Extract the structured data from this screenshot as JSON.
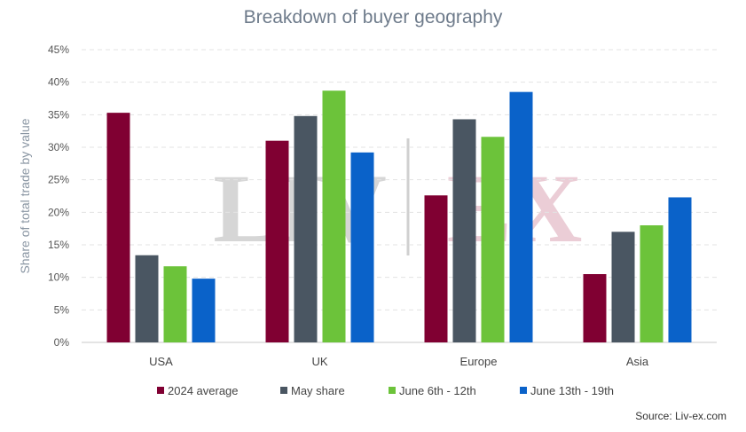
{
  "chart_data": {
    "type": "bar",
    "title": "Breakdown of buyer geography",
    "xlabel": "",
    "ylabel": "Share of total trade by value",
    "categories": [
      "USA",
      "UK",
      "Europe",
      "Asia"
    ],
    "ylim": [
      0,
      45
    ],
    "yticks": [
      "0%",
      "5%",
      "10%",
      "15%",
      "20%",
      "25%",
      "30%",
      "35%",
      "40%",
      "45%"
    ],
    "grid": true,
    "legend_position": "bottom",
    "series": [
      {
        "name": "2024 average",
        "color": "#800032",
        "values": [
          35.3,
          31.0,
          22.6,
          10.5
        ]
      },
      {
        "name": "May share",
        "color": "#4a5662",
        "values": [
          13.4,
          34.8,
          34.3,
          17.0
        ]
      },
      {
        "name": "June 6th - 12th",
        "color": "#6cc33a",
        "values": [
          11.7,
          38.7,
          31.6,
          18.0
        ]
      },
      {
        "name": "June 13th - 19th",
        "color": "#0a62c9",
        "values": [
          9.8,
          29.2,
          38.5,
          22.3
        ]
      }
    ]
  },
  "watermark": {
    "left": "LIV",
    "right": "EX"
  },
  "source": "Source: Liv-ex.com"
}
